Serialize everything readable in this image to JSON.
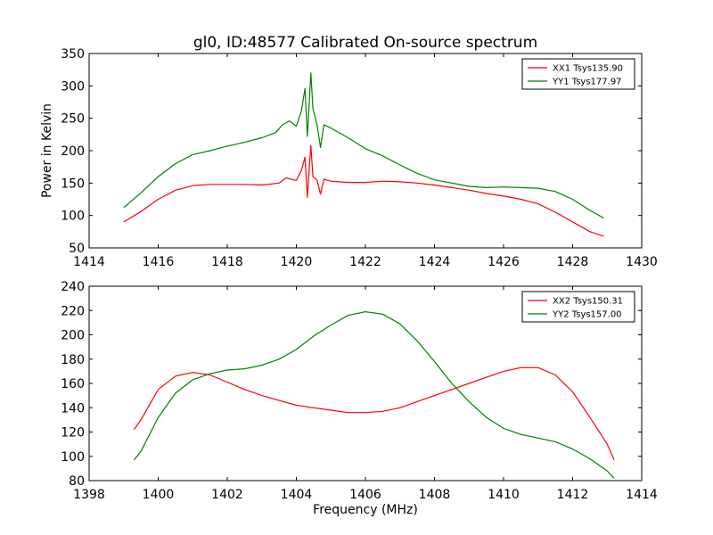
{
  "chart_data": [
    {
      "type": "line",
      "title": "gl0, ID:48577 Calibrated On-source spectrum",
      "xlabel": "",
      "ylabel": "Power in Kelvin",
      "xlim": [
        1414,
        1430
      ],
      "ylim": [
        50,
        350
      ],
      "xticks": [
        "1414",
        "1416",
        "1418",
        "1420",
        "1422",
        "1424",
        "1426",
        "1428",
        "1430"
      ],
      "yticks": [
        "50",
        "100",
        "150",
        "200",
        "250",
        "300",
        "350"
      ],
      "legend_position": "top-right",
      "grid": false,
      "series": [
        {
          "name": "XX1 Tsys135.90",
          "color": "#ff0000",
          "points": [
            [
              1415.0,
              90
            ],
            [
              1415.5,
              106
            ],
            [
              1416.0,
              125
            ],
            [
              1416.5,
              139
            ],
            [
              1417.0,
              146
            ],
            [
              1417.5,
              148
            ],
            [
              1418.0,
              148
            ],
            [
              1418.5,
              148
            ],
            [
              1419.0,
              147
            ],
            [
              1419.5,
              150
            ],
            [
              1419.7,
              158
            ],
            [
              1420.0,
              154
            ],
            [
              1420.15,
              170
            ],
            [
              1420.25,
              190
            ],
            [
              1420.32,
              128
            ],
            [
              1420.38,
              178
            ],
            [
              1420.42,
              208
            ],
            [
              1420.48,
              160
            ],
            [
              1420.6,
              155
            ],
            [
              1420.7,
              133
            ],
            [
              1420.8,
              156
            ],
            [
              1421.0,
              153
            ],
            [
              1421.5,
              151
            ],
            [
              1422.0,
              151
            ],
            [
              1422.5,
              153
            ],
            [
              1423.0,
              152
            ],
            [
              1423.5,
              150
            ],
            [
              1424.0,
              147
            ],
            [
              1424.5,
              143
            ],
            [
              1425.0,
              139
            ],
            [
              1425.5,
              134
            ],
            [
              1426.0,
              130
            ],
            [
              1426.5,
              125
            ],
            [
              1427.0,
              118
            ],
            [
              1427.5,
              105
            ],
            [
              1428.0,
              90
            ],
            [
              1428.5,
              75
            ],
            [
              1428.9,
              68
            ]
          ]
        },
        {
          "name": "YY1 Tsys177.97",
          "color": "#008000",
          "points": [
            [
              1415.0,
              112
            ],
            [
              1415.5,
              135
            ],
            [
              1416.0,
              160
            ],
            [
              1416.5,
              180
            ],
            [
              1417.0,
              194
            ],
            [
              1417.5,
              200
            ],
            [
              1418.0,
              207
            ],
            [
              1418.5,
              213
            ],
            [
              1419.0,
              220
            ],
            [
              1419.4,
              228
            ],
            [
              1419.6,
              240
            ],
            [
              1419.8,
              246
            ],
            [
              1420.0,
              238
            ],
            [
              1420.15,
              262
            ],
            [
              1420.25,
              296
            ],
            [
              1420.32,
              222
            ],
            [
              1420.38,
              280
            ],
            [
              1420.42,
              320
            ],
            [
              1420.48,
              265
            ],
            [
              1420.6,
              240
            ],
            [
              1420.7,
              205
            ],
            [
              1420.8,
              240
            ],
            [
              1421.0,
              235
            ],
            [
              1421.5,
              220
            ],
            [
              1422.0,
              203
            ],
            [
              1422.5,
              192
            ],
            [
              1423.0,
              178
            ],
            [
              1423.5,
              165
            ],
            [
              1424.0,
              155
            ],
            [
              1424.5,
              150
            ],
            [
              1425.0,
              145
            ],
            [
              1425.5,
              143
            ],
            [
              1426.0,
              144
            ],
            [
              1426.5,
              143
            ],
            [
              1427.0,
              142
            ],
            [
              1427.5,
              137
            ],
            [
              1428.0,
              125
            ],
            [
              1428.5,
              108
            ],
            [
              1428.9,
              96
            ]
          ]
        }
      ]
    },
    {
      "type": "line",
      "title": "",
      "xlabel": "Frequency (MHz)",
      "ylabel": "",
      "xlim": [
        1398,
        1414
      ],
      "ylim": [
        80,
        240
      ],
      "xticks": [
        "1398",
        "1400",
        "1402",
        "1404",
        "1406",
        "1408",
        "1410",
        "1412",
        "1414"
      ],
      "yticks": [
        "80",
        "100",
        "120",
        "140",
        "160",
        "180",
        "200",
        "220",
        "240"
      ],
      "legend_position": "top-right",
      "grid": false,
      "series": [
        {
          "name": "XX2 Tsys150.31",
          "color": "#ff0000",
          "points": [
            [
              1399.3,
              122
            ],
            [
              1399.5,
              130
            ],
            [
              1400.0,
              155
            ],
            [
              1400.5,
              166
            ],
            [
              1401.0,
              169
            ],
            [
              1401.5,
              167
            ],
            [
              1402.0,
              161
            ],
            [
              1402.5,
              155
            ],
            [
              1403.0,
              150
            ],
            [
              1403.5,
              146
            ],
            [
              1404.0,
              142
            ],
            [
              1404.5,
              140
            ],
            [
              1405.0,
              138
            ],
            [
              1405.5,
              136
            ],
            [
              1406.0,
              136
            ],
            [
              1406.5,
              137
            ],
            [
              1407.0,
              140
            ],
            [
              1407.5,
              145
            ],
            [
              1408.0,
              150
            ],
            [
              1408.5,
              155
            ],
            [
              1409.0,
              160
            ],
            [
              1409.5,
              165
            ],
            [
              1410.0,
              170
            ],
            [
              1410.5,
              173
            ],
            [
              1411.0,
              173
            ],
            [
              1411.5,
              167
            ],
            [
              1412.0,
              153
            ],
            [
              1412.5,
              132
            ],
            [
              1413.0,
              110
            ],
            [
              1413.2,
              97
            ]
          ]
        },
        {
          "name": "YY2 Tsys157.00",
          "color": "#008000",
          "points": [
            [
              1399.3,
              97
            ],
            [
              1399.5,
              104
            ],
            [
              1400.0,
              132
            ],
            [
              1400.5,
              152
            ],
            [
              1401.0,
              163
            ],
            [
              1401.5,
              168
            ],
            [
              1402.0,
              171
            ],
            [
              1402.5,
              172
            ],
            [
              1403.0,
              175
            ],
            [
              1403.5,
              180
            ],
            [
              1404.0,
              188
            ],
            [
              1404.5,
              199
            ],
            [
              1405.0,
              208
            ],
            [
              1405.5,
              216
            ],
            [
              1406.0,
              219
            ],
            [
              1406.5,
              217
            ],
            [
              1407.0,
              209
            ],
            [
              1407.5,
              195
            ],
            [
              1408.0,
              178
            ],
            [
              1408.5,
              160
            ],
            [
              1409.0,
              145
            ],
            [
              1409.5,
              132
            ],
            [
              1410.0,
              123
            ],
            [
              1410.5,
              118
            ],
            [
              1411.0,
              115
            ],
            [
              1411.5,
              112
            ],
            [
              1412.0,
              106
            ],
            [
              1412.5,
              98
            ],
            [
              1413.0,
              88
            ],
            [
              1413.2,
              82
            ]
          ]
        }
      ]
    }
  ]
}
